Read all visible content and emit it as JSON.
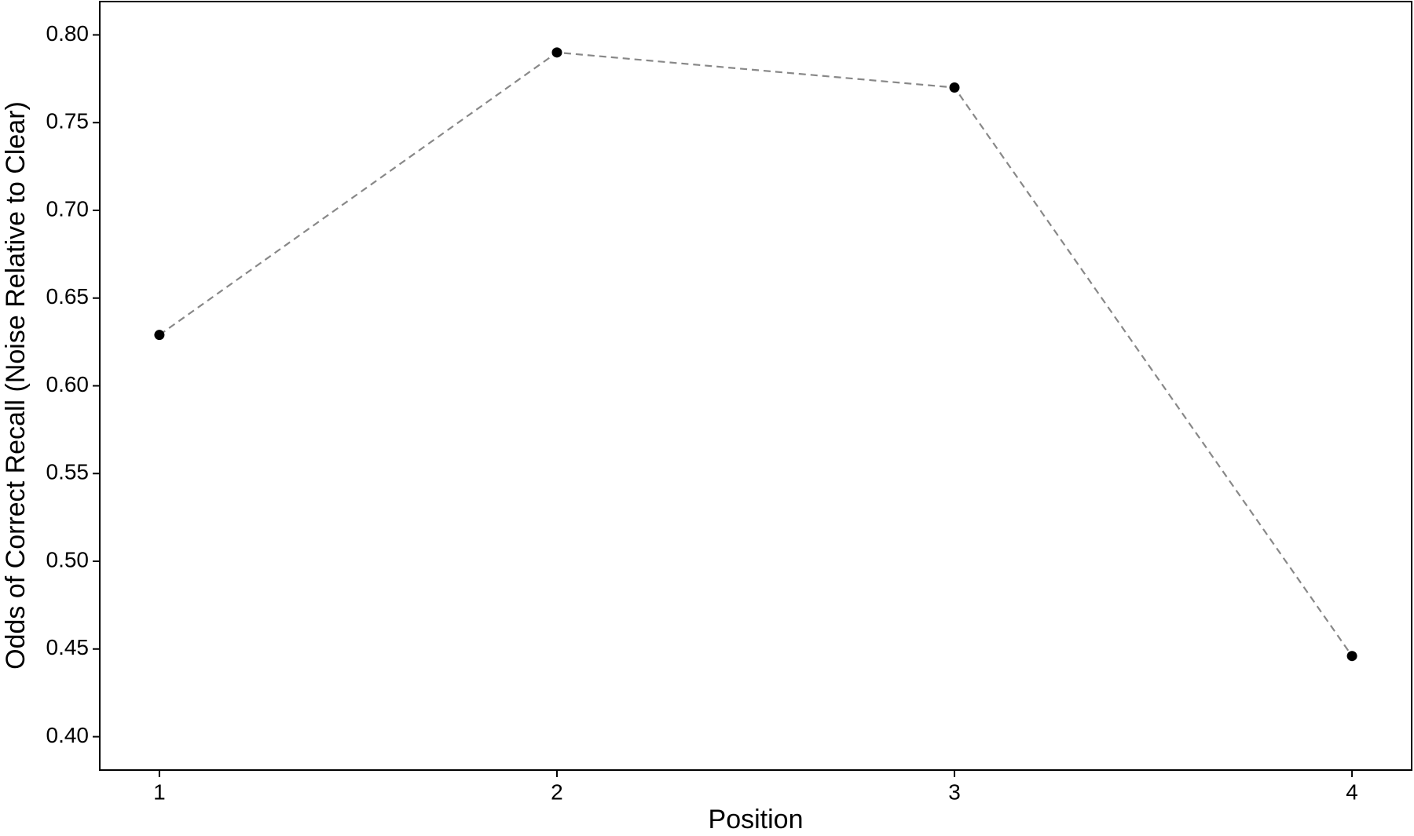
{
  "chart_data": {
    "type": "line",
    "x_label": "Position",
    "y_label": "Odds of Correct Recall (Noise Relative to Clear)",
    "x": [
      1,
      2,
      3,
      4
    ],
    "values": [
      0.629,
      0.79,
      0.77,
      0.446
    ],
    "line_color": "#888888",
    "line_style": "dashed",
    "marker_color": "#000000",
    "xlim": [
      0.85,
      4.15
    ],
    "xticks": [
      1,
      2,
      3,
      4
    ],
    "ylim": [
      0.381,
      0.819
    ],
    "yticks": [
      {
        "value": 0.4,
        "label": "0.40"
      },
      {
        "value": 0.45,
        "label": "0.45"
      },
      {
        "value": 0.5,
        "label": "0.50"
      },
      {
        "value": 0.55,
        "label": "0.55"
      },
      {
        "value": 0.6,
        "label": "0.60"
      },
      {
        "value": 0.65,
        "label": "0.65"
      },
      {
        "value": 0.7,
        "label": "0.70"
      },
      {
        "value": 0.75,
        "label": "0.75"
      },
      {
        "value": 0.8,
        "label": "0.80"
      }
    ],
    "grid": false
  }
}
